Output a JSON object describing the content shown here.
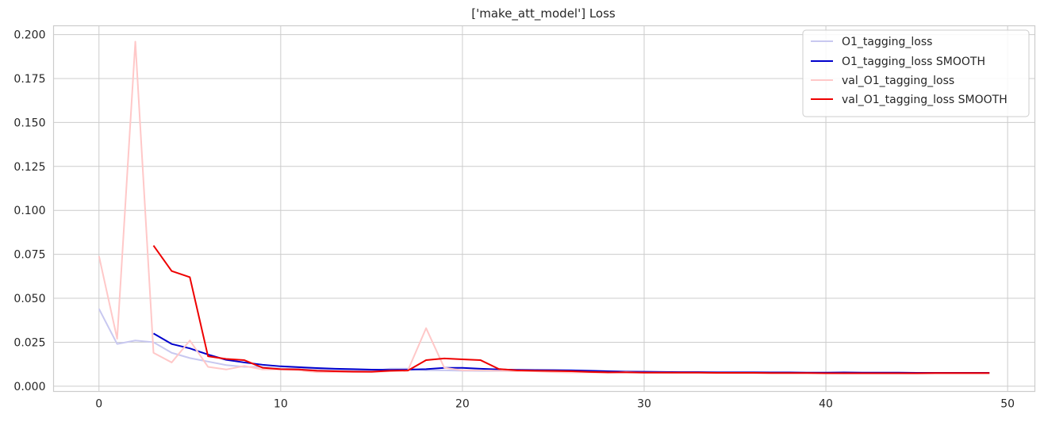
{
  "chart_data": {
    "type": "line",
    "title": "['make_att_model'] Loss",
    "xlabel": "",
    "ylabel": "",
    "xlim": [
      -2.5,
      51.5
    ],
    "ylim": [
      -0.003,
      0.205
    ],
    "x_ticks": [
      0,
      10,
      20,
      30,
      40,
      50
    ],
    "x_tick_labels": [
      "0",
      "10",
      "20",
      "30",
      "40",
      "50"
    ],
    "y_ticks": [
      0.0,
      0.025,
      0.05,
      0.075,
      0.1,
      0.125,
      0.15,
      0.175,
      0.2
    ],
    "y_tick_labels": [
      "0.000",
      "0.025",
      "0.050",
      "0.075",
      "0.100",
      "0.125",
      "0.150",
      "0.175",
      "0.200"
    ],
    "grid": true,
    "legend_position": "top-right",
    "series": [
      {
        "name": "O1_tagging_loss",
        "color": "#c8c8f0",
        "x": [
          0,
          1,
          2,
          3,
          4,
          5,
          6,
          7,
          8,
          9,
          10,
          11,
          12,
          13,
          14,
          15,
          16,
          17,
          18,
          19,
          20,
          21,
          22,
          23,
          24,
          25,
          26,
          27,
          28,
          29,
          30,
          31,
          32,
          33,
          34,
          35,
          36,
          37,
          38,
          39,
          40,
          41,
          42,
          43,
          44,
          45,
          46,
          47,
          48,
          49
        ],
        "values": [
          0.044,
          0.024,
          0.026,
          0.025,
          0.019,
          0.016,
          0.014,
          0.012,
          0.011,
          0.011,
          0.01,
          0.01,
          0.0095,
          0.009,
          0.009,
          0.0085,
          0.01,
          0.01,
          0.009,
          0.009,
          0.0088,
          0.0087,
          0.0087,
          0.0085,
          0.0085,
          0.0084,
          0.0082,
          0.008,
          0.008,
          0.0078,
          0.0078,
          0.0077,
          0.0076,
          0.0076,
          0.0076,
          0.0075,
          0.0075,
          0.0075,
          0.0074,
          0.0074,
          0.0074,
          0.0073,
          0.0073,
          0.0073,
          0.0073,
          0.0072,
          0.0072,
          0.0072,
          0.0072,
          0.0072
        ]
      },
      {
        "name": "O1_tagging_loss SMOOTH",
        "color": "#0000cc",
        "x": [
          3,
          4,
          5,
          6,
          7,
          8,
          9,
          10,
          11,
          12,
          13,
          14,
          15,
          16,
          17,
          18,
          19,
          20,
          21,
          22,
          23,
          24,
          25,
          26,
          27,
          28,
          29,
          30,
          31,
          32,
          33,
          34,
          35,
          36,
          37,
          38,
          39,
          40,
          41,
          42,
          43,
          44,
          45,
          46,
          47,
          48,
          49
        ],
        "values": [
          0.03,
          0.024,
          0.0215,
          0.018,
          0.015,
          0.0135,
          0.0122,
          0.0113,
          0.0108,
          0.0103,
          0.0099,
          0.0097,
          0.0094,
          0.0093,
          0.0094,
          0.0097,
          0.0104,
          0.0104,
          0.0099,
          0.0095,
          0.0093,
          0.0092,
          0.0091,
          0.009,
          0.0088,
          0.0085,
          0.0083,
          0.0082,
          0.0081,
          0.008,
          0.008,
          0.0079,
          0.0079,
          0.0079,
          0.0078,
          0.0078,
          0.0077,
          0.0077,
          0.0078,
          0.0077,
          0.0077,
          0.0077,
          0.0076,
          0.0076,
          0.0076,
          0.0076,
          0.0076
        ]
      },
      {
        "name": "val_O1_tagging_loss",
        "color": "#ffc8c8",
        "x": [
          0,
          1,
          2,
          3,
          4,
          5,
          6,
          7,
          8,
          9,
          10,
          11,
          12,
          13,
          14,
          15,
          16,
          17,
          18,
          19,
          20,
          21,
          22,
          23,
          24,
          25,
          26,
          27,
          28,
          29,
          30,
          31,
          32,
          33,
          34,
          35,
          36,
          37,
          38,
          39,
          40,
          41,
          42,
          43,
          44,
          45,
          46,
          47,
          48,
          49
        ],
        "values": [
          0.074,
          0.027,
          0.196,
          0.019,
          0.0135,
          0.026,
          0.011,
          0.0095,
          0.0115,
          0.0095,
          0.0095,
          0.009,
          0.008,
          0.008,
          0.008,
          0.008,
          0.0085,
          0.009,
          0.033,
          0.0105,
          0.009,
          0.009,
          0.0088,
          0.0085,
          0.0085,
          0.008,
          0.0078,
          0.0078,
          0.0076,
          0.008,
          0.0077,
          0.0077,
          0.0076,
          0.0076,
          0.0075,
          0.0075,
          0.0075,
          0.0074,
          0.0074,
          0.0074,
          0.0073,
          0.0073,
          0.0073,
          0.0073,
          0.0073,
          0.0072,
          0.0072,
          0.0072,
          0.0072,
          0.0072
        ]
      },
      {
        "name": "val_O1_tagging_loss SMOOTH",
        "color": "#ee0000",
        "x": [
          3,
          4,
          5,
          6,
          7,
          8,
          9,
          10,
          11,
          12,
          13,
          14,
          15,
          16,
          17,
          18,
          19,
          20,
          21,
          22,
          23,
          24,
          25,
          26,
          27,
          28,
          29,
          30,
          31,
          32,
          33,
          34,
          35,
          36,
          37,
          38,
          39,
          40,
          41,
          42,
          43,
          44,
          45,
          46,
          47,
          48,
          49
        ],
        "values": [
          0.08,
          0.0655,
          0.062,
          0.017,
          0.0155,
          0.0148,
          0.0105,
          0.0097,
          0.0095,
          0.0088,
          0.0085,
          0.0083,
          0.0082,
          0.0088,
          0.0089,
          0.0148,
          0.0158,
          0.0153,
          0.0148,
          0.0098,
          0.009,
          0.0088,
          0.0087,
          0.0085,
          0.0081,
          0.0079,
          0.0079,
          0.0077,
          0.0077,
          0.0077,
          0.0077,
          0.0076,
          0.0076,
          0.0076,
          0.0075,
          0.0075,
          0.0075,
          0.0074,
          0.0074,
          0.0074,
          0.0074,
          0.0074,
          0.0074,
          0.0075,
          0.0075,
          0.0075,
          0.0075
        ]
      }
    ]
  }
}
